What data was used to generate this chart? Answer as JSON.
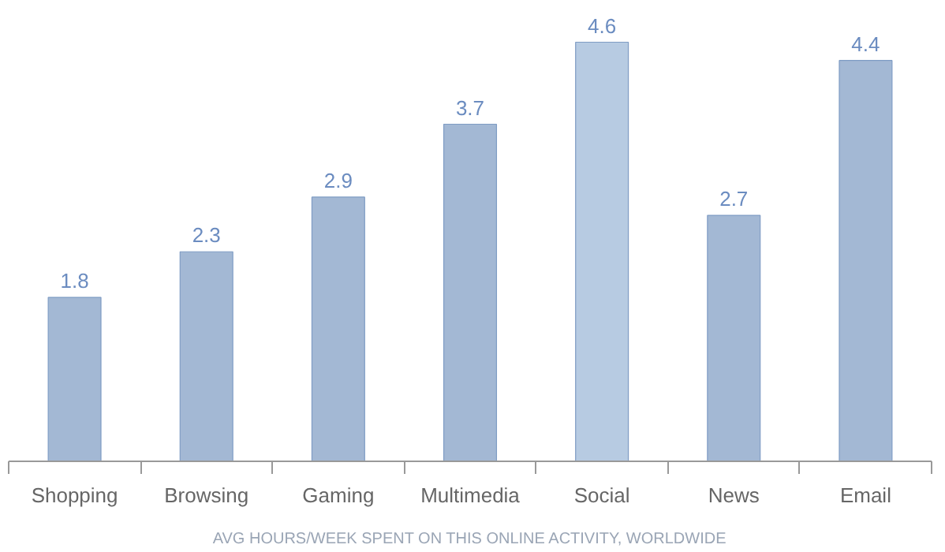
{
  "chart_data": {
    "type": "bar",
    "xlabel": "AVG HOURS/WEEK SPENT ON THIS ONLINE ACTIVITY, WORLDWIDE",
    "categories": [
      "Shopping",
      "Browsing",
      "Gaming",
      "Multimedia",
      "Social",
      "News",
      "Email"
    ],
    "values": [
      1.8,
      2.3,
      2.9,
      3.7,
      4.6,
      2.7,
      4.4
    ],
    "colors": [
      "#a3b8d4",
      "#a3b8d4",
      "#a3b8d4",
      "#a3b8d4",
      "#b7cbe2",
      "#a3b8d4",
      "#a3b8d4"
    ],
    "data_labels": true,
    "grid": false
  }
}
